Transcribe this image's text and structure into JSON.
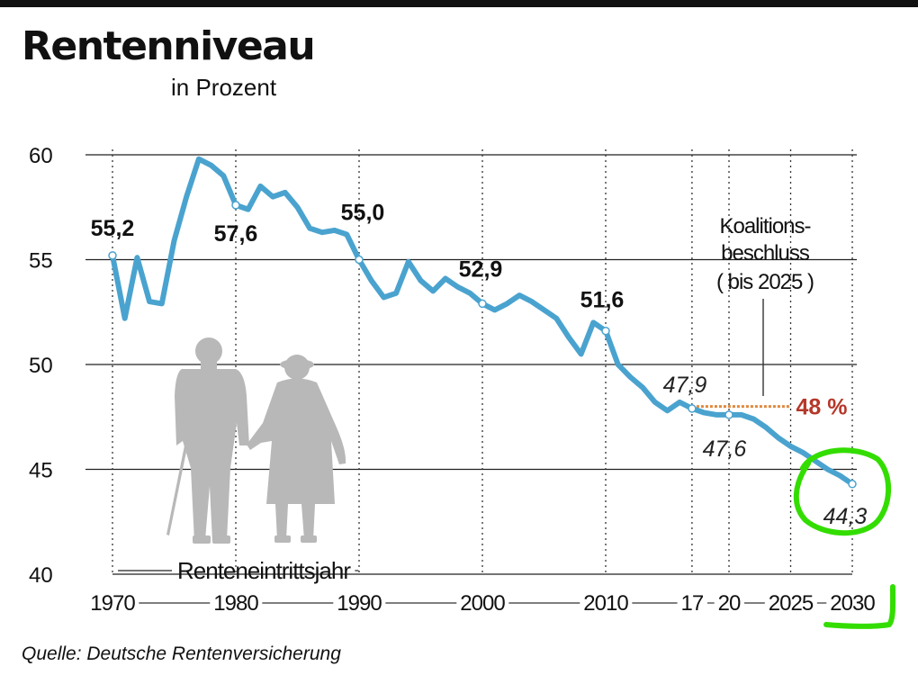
{
  "header": {
    "title": "Rentenniveau",
    "subtitle": "in Prozent"
  },
  "footer": {
    "source": "Quelle: Deutsche Rentenversicherung"
  },
  "colors": {
    "line": "#4aa3cf",
    "target_line": "#e0893f",
    "target_text": "#b5382a",
    "highlight": "#33dd00",
    "silhouette": "#b8b8b8"
  },
  "chart_data": {
    "type": "line",
    "title": "Rentenniveau",
    "subtitle": "in Prozent",
    "xlabel": "Renteneintrittsjahr",
    "ylabel": "",
    "ylim": [
      40,
      60
    ],
    "yticks": [
      40,
      45,
      50,
      55,
      60
    ],
    "xlim": [
      1970,
      2030
    ],
    "xticks": [
      {
        "year": 1970,
        "label": "1970"
      },
      {
        "year": 1980,
        "label": "1980"
      },
      {
        "year": 1990,
        "label": "1990"
      },
      {
        "year": 2000,
        "label": "2000"
      },
      {
        "year": 2010,
        "label": "2010"
      },
      {
        "year": 2017,
        "label": "17"
      },
      {
        "year": 2020,
        "label": "20"
      },
      {
        "year": 2025,
        "label": "2025"
      },
      {
        "year": 2030,
        "label": "2030"
      }
    ],
    "grid": true,
    "series": [
      {
        "name": "",
        "x": [
          1970,
          1971,
          1972,
          1973,
          1974,
          1975,
          1976,
          1977,
          1978,
          1979,
          1980,
          1981,
          1982,
          1983,
          1984,
          1985,
          1986,
          1987,
          1988,
          1989,
          1990,
          1991,
          1992,
          1993,
          1994,
          1995,
          1996,
          1997,
          1998,
          1999,
          2000,
          2001,
          2002,
          2003,
          2004,
          2005,
          2006,
          2007,
          2008,
          2009,
          2010,
          2011,
          2012,
          2013,
          2014,
          2015,
          2016,
          2017,
          2018,
          2019,
          2020,
          2021,
          2022,
          2023,
          2024,
          2025,
          2026,
          2027,
          2028,
          2029,
          2030
        ],
        "values": [
          55.2,
          52.2,
          55.1,
          53.0,
          52.9,
          55.9,
          58.0,
          59.8,
          59.5,
          59.0,
          57.6,
          57.4,
          58.5,
          58.0,
          58.2,
          57.5,
          56.5,
          56.3,
          56.4,
          56.2,
          55.0,
          54.0,
          53.2,
          53.4,
          54.9,
          54.0,
          53.5,
          54.1,
          53.7,
          53.4,
          52.9,
          52.6,
          52.9,
          53.3,
          53.0,
          52.6,
          52.2,
          51.3,
          50.5,
          52.0,
          51.6,
          50.0,
          49.4,
          48.9,
          48.2,
          47.8,
          48.2,
          47.9,
          47.7,
          47.6,
          47.6,
          47.6,
          47.4,
          47.0,
          46.5,
          46.1,
          45.8,
          45.4,
          45.0,
          44.7,
          44.3
        ]
      }
    ],
    "labels": [
      {
        "x": 1970,
        "y": 55.2,
        "text": "55,2",
        "style": "bold"
      },
      {
        "x": 1980,
        "y": 57.6,
        "text": "57,6",
        "style": "bold"
      },
      {
        "x": 1990,
        "y": 55.0,
        "text": "55,0",
        "style": "bold"
      },
      {
        "x": 2000,
        "y": 52.9,
        "text": "52,9",
        "style": "bold"
      },
      {
        "x": 2010,
        "y": 51.6,
        "text": "51,6",
        "style": "bold"
      },
      {
        "x": 2017,
        "y": 47.9,
        "text": "47,9",
        "style": "italic"
      },
      {
        "x": 2020,
        "y": 47.6,
        "text": "47,6",
        "style": "italic"
      },
      {
        "x": 2030,
        "y": 44.3,
        "text": "44,3",
        "style": "italic"
      }
    ],
    "target": {
      "value": 48,
      "x_start": 2017,
      "x_end": 2025,
      "label": "48 %"
    },
    "annotation": {
      "lines": [
        "Koalitions-",
        "beschluss",
        "( bis 2025 )"
      ]
    }
  }
}
